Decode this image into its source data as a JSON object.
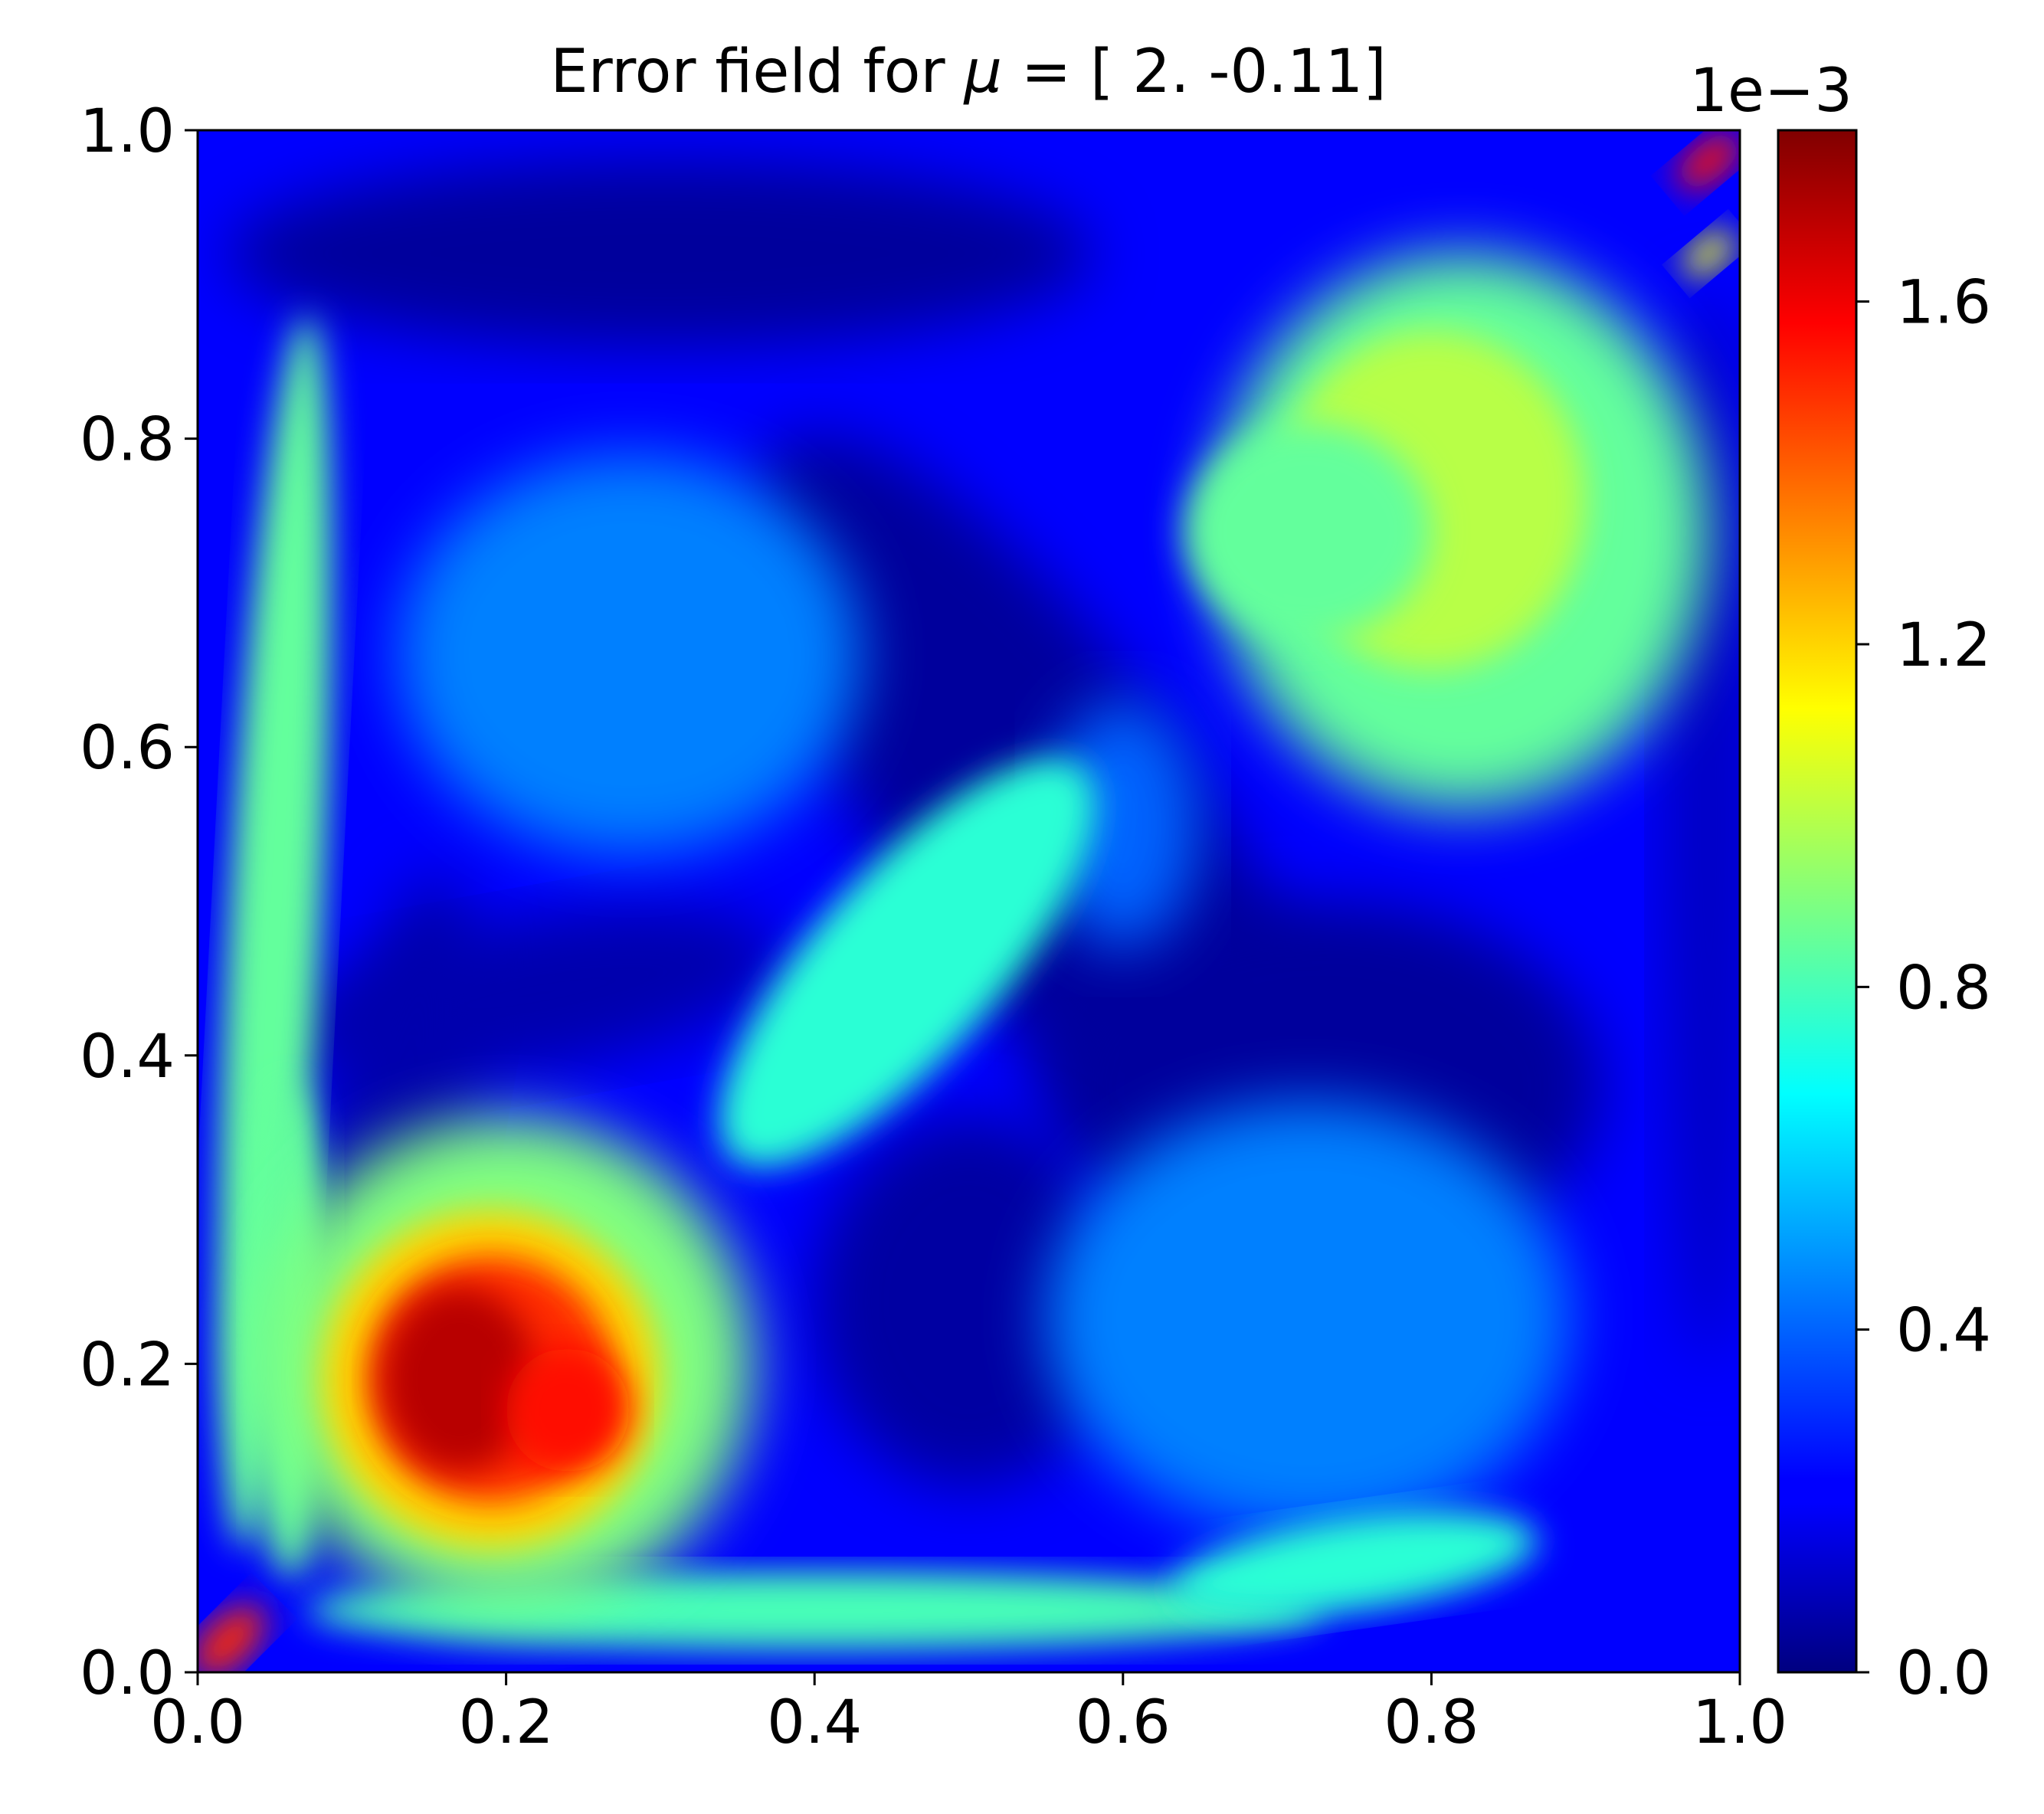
{
  "chart_data": {
    "type": "heatmap",
    "title": "Error field for μ = [ 2.   -0.11]",
    "title_prefix": "Error field for ",
    "title_symbol": "μ",
    "title_suffix": " = [ 2.   -0.11]",
    "xlabel": "",
    "ylabel": "",
    "xlim": [
      0.0,
      1.0
    ],
    "ylim": [
      0.0,
      1.0
    ],
    "xticks": [
      "0.0",
      "0.2",
      "0.4",
      "0.6",
      "0.8",
      "1.0"
    ],
    "yticks": [
      "0.0",
      "0.2",
      "0.4",
      "0.6",
      "0.8",
      "1.0"
    ],
    "colormap": "jet",
    "colorbar": {
      "range": [
        0.0,
        1.8
      ],
      "ticks": [
        "0.0",
        "0.4",
        "0.8",
        "1.2",
        "1.6"
      ],
      "offset_label": "1e−3",
      "placement": "right"
    },
    "grid": false,
    "features": [
      {
        "region": "lower-left lobe",
        "center": [
          0.18,
          0.19
        ],
        "peak_value": 1.7
      },
      {
        "region": "upper-right lobe",
        "center": [
          0.82,
          0.76
        ],
        "peak_value": 1.05
      },
      {
        "region": "central diagonal band",
        "center": [
          0.46,
          0.46
        ],
        "peak_value": 0.8
      },
      {
        "region": "left wall strip",
        "center": [
          0.05,
          0.45
        ],
        "peak_value": 0.95
      },
      {
        "region": "bottom wall strip",
        "center": [
          0.45,
          0.04
        ],
        "peak_value": 0.85
      },
      {
        "region": "lower-left corner",
        "center": [
          0.02,
          0.02
        ],
        "peak_value": 1.5
      },
      {
        "region": "upper-right corner",
        "center": [
          0.98,
          0.98
        ],
        "peak_value": 1.55
      }
    ]
  }
}
